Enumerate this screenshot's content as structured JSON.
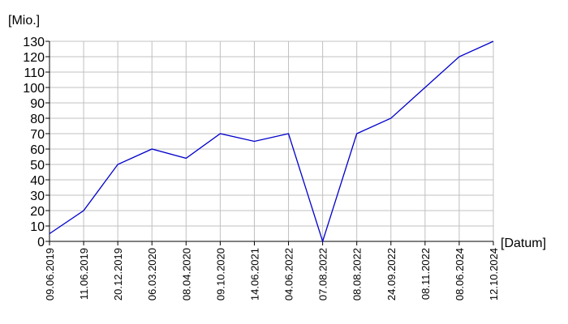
{
  "chart_data": {
    "type": "line",
    "y_label": "[Mio.]",
    "x_label": "[Datum]",
    "categories": [
      "09.06.2019",
      "11.06.2019",
      "20.12.2019",
      "06.03.2020",
      "08.04.2020",
      "09.10.2020",
      "14.06.2021",
      "04.06.2022",
      "07.08.2022",
      "08.08.2022",
      "24.09.2022",
      "08.11.2022",
      "08.06.2024",
      "12.10.2024"
    ],
    "values": [
      5,
      20,
      50,
      60,
      54,
      70,
      65,
      70,
      0,
      70,
      80,
      100,
      120,
      130
    ],
    "color": "#0000cc",
    "ylim": [
      0,
      130
    ],
    "yticks": [
      0,
      10,
      20,
      30,
      40,
      50,
      60,
      70,
      80,
      90,
      100,
      110,
      120,
      130
    ],
    "grid": true
  }
}
